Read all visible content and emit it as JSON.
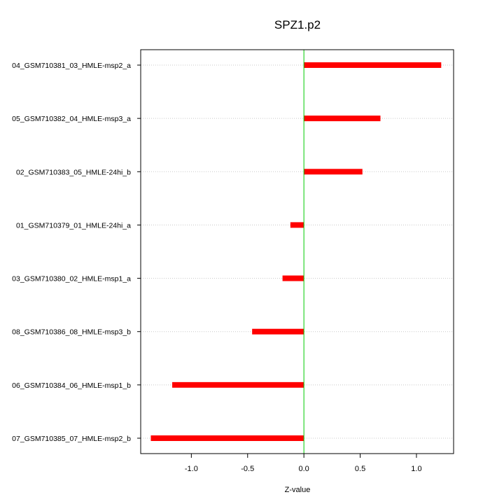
{
  "chart_data": {
    "type": "bar",
    "orientation": "horizontal",
    "title": "SPZ1.p2",
    "xlabel": "Z-value",
    "ylabel": "",
    "xlim": [
      -1.45,
      1.33
    ],
    "xticks": [
      -1.0,
      -0.5,
      0.0,
      0.5,
      1.0
    ],
    "xtick_labels": [
      "-1.0",
      "-0.5",
      "0.0",
      "0.5",
      "1.0"
    ],
    "categories": [
      "04_GSM710381_03_HMLE-msp2_a",
      "05_GSM710382_04_HMLE-msp3_a",
      "02_GSM710383_05_HMLE-24hi_b",
      "01_GSM710379_01_HMLE-24hi_a",
      "03_GSM710380_02_HMLE-msp1_a",
      "08_GSM710386_08_HMLE-msp3_b",
      "06_GSM710384_06_HMLE-msp1_b",
      "07_GSM710385_07_HMLE-msp2_b"
    ],
    "values": [
      1.22,
      0.68,
      0.52,
      -0.12,
      -0.19,
      -0.46,
      -1.17,
      -1.36
    ],
    "grid": "horizontal dotted",
    "bar_color": "#ff0000",
    "zero_line_color": "#00cc00"
  }
}
